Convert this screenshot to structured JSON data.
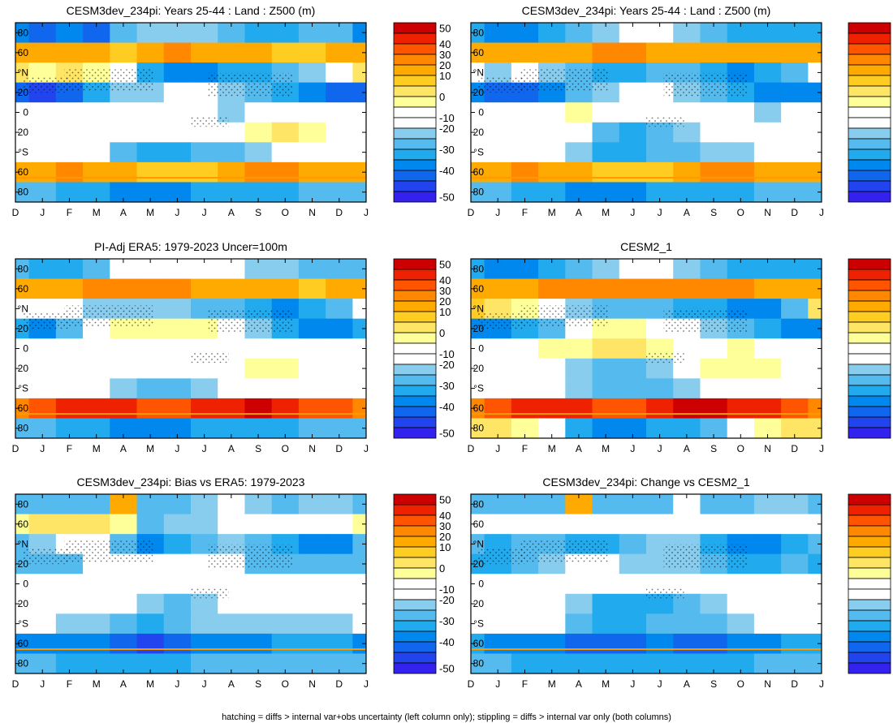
{
  "chart_data": {
    "type": "heatmap",
    "variable": "Z500 (m)",
    "months": [
      "D",
      "J",
      "F",
      "M",
      "A",
      "M",
      "J",
      "J",
      "A",
      "S",
      "O",
      "N",
      "D",
      "J"
    ],
    "lat_labels": [
      "80",
      "60",
      "°N",
      "20",
      "0",
      "20",
      "°S",
      "60",
      "80"
    ],
    "colorbar": {
      "levels": [
        "50",
        "40",
        "30",
        "20",
        "10",
        "0",
        "-10",
        "-20",
        "-30",
        "-40",
        "-50"
      ],
      "colors": [
        "#cc0000",
        "#ee2200",
        "#ff5500",
        "#ff8800",
        "#ffaa00",
        "#ffcc22",
        "#ffe566",
        "#ffff99",
        "#ffffff",
        "#ffffff",
        "#88ccee",
        "#55bbee",
        "#22aaee",
        "#0088ee",
        "#1166ee",
        "#2244ee",
        "#3322ee"
      ]
    },
    "footer": "hatching = diffs > internal var+obs uncertainty (left column only); stippling = diffs > internal var only (both columns)",
    "panels": [
      {
        "title": "CESM3dev_234pi: Years 25-44 : Land : Z500 (m)",
        "rows": [
          [
            -20,
            -25,
            -20,
            -25,
            -10,
            -5,
            -5,
            -5,
            -10,
            -15,
            -15,
            -10,
            -10,
            -20
          ],
          [
            20,
            25,
            25,
            20,
            15,
            25,
            30,
            25,
            25,
            20,
            15,
            15,
            20,
            20
          ],
          [
            10,
            5,
            10,
            5,
            0,
            -15,
            -20,
            -20,
            -15,
            -15,
            -10,
            -5,
            0,
            10
          ],
          [
            -25,
            -30,
            -25,
            -15,
            -5,
            -5,
            0,
            0,
            -5,
            -10,
            -15,
            -20,
            -25,
            -25
          ],
          [
            0,
            0,
            0,
            0,
            0,
            0,
            0,
            0,
            -5,
            0,
            0,
            0,
            0,
            0
          ],
          [
            0,
            0,
            0,
            0,
            0,
            0,
            0,
            0,
            0,
            5,
            10,
            5,
            0,
            0
          ],
          [
            0,
            0,
            0,
            0,
            -10,
            -15,
            -15,
            -10,
            -10,
            -5,
            0,
            0,
            0,
            0
          ],
          [
            20,
            25,
            30,
            25,
            20,
            15,
            15,
            15,
            20,
            30,
            35,
            25,
            20,
            20
          ],
          [
            -10,
            -10,
            -15,
            -15,
            -20,
            -20,
            -20,
            -15,
            -15,
            -15,
            -15,
            -10,
            -10,
            -10
          ]
        ]
      },
      {
        "title": "CESM3dev_234pi: Years 25-44 : Land : Z500 (m)",
        "rows": [
          [
            -15,
            -20,
            -20,
            -15,
            -10,
            -5,
            0,
            0,
            -5,
            -10,
            -15,
            -15,
            -15,
            -15
          ],
          [
            20,
            25,
            25,
            25,
            25,
            30,
            30,
            25,
            25,
            20,
            20,
            20,
            20,
            20
          ],
          [
            0,
            -5,
            0,
            -5,
            -10,
            -15,
            -15,
            -10,
            -10,
            -15,
            -20,
            -15,
            -10,
            0
          ],
          [
            -20,
            -25,
            -25,
            -20,
            -10,
            -5,
            0,
            0,
            -5,
            -10,
            -15,
            -20,
            -20,
            -20
          ],
          [
            0,
            0,
            0,
            0,
            5,
            0,
            0,
            0,
            0,
            0,
            0,
            -5,
            0,
            0
          ],
          [
            0,
            0,
            0,
            0,
            0,
            -10,
            -15,
            -10,
            -5,
            0,
            0,
            0,
            0,
            0
          ],
          [
            0,
            0,
            0,
            0,
            -5,
            -15,
            -15,
            -10,
            -10,
            -5,
            -5,
            0,
            0,
            0
          ],
          [
            20,
            25,
            30,
            25,
            20,
            15,
            15,
            15,
            20,
            30,
            35,
            25,
            20,
            20
          ],
          [
            -10,
            -10,
            -15,
            -15,
            -20,
            -20,
            -20,
            -15,
            -15,
            -15,
            -15,
            -10,
            -10,
            -10
          ]
        ]
      },
      {
        "title": "PI-Adj ERA5: 1979-2023 Uncer=100m",
        "rows": [
          [
            -10,
            -15,
            -15,
            -10,
            0,
            0,
            0,
            0,
            0,
            -5,
            -5,
            -10,
            -10,
            -10
          ],
          [
            20,
            25,
            25,
            30,
            30,
            35,
            30,
            25,
            20,
            20,
            20,
            15,
            20,
            20
          ],
          [
            0,
            0,
            0,
            -5,
            -5,
            -5,
            -5,
            -10,
            -10,
            -15,
            -20,
            -15,
            -10,
            0
          ],
          [
            -15,
            -20,
            -10,
            0,
            5,
            5,
            5,
            5,
            0,
            -5,
            -15,
            -20,
            -20,
            -15
          ],
          [
            0,
            0,
            0,
            0,
            0,
            0,
            0,
            0,
            0,
            0,
            0,
            0,
            0,
            0
          ],
          [
            0,
            0,
            0,
            0,
            0,
            0,
            0,
            0,
            0,
            5,
            5,
            0,
            0,
            0
          ],
          [
            0,
            0,
            0,
            0,
            -5,
            -10,
            -10,
            -5,
            0,
            0,
            0,
            0,
            0,
            0
          ],
          [
            35,
            40,
            45,
            45,
            45,
            40,
            40,
            45,
            45,
            50,
            45,
            40,
            40,
            35
          ],
          [
            -10,
            -10,
            -15,
            -15,
            -20,
            -20,
            -20,
            -15,
            -15,
            -15,
            -15,
            -10,
            -10,
            -10
          ]
        ]
      },
      {
        "title": "CESM2_1",
        "rows": [
          [
            -15,
            -20,
            -20,
            -15,
            -10,
            -5,
            0,
            0,
            -5,
            -10,
            -15,
            -15,
            -15,
            -15
          ],
          [
            20,
            25,
            25,
            30,
            30,
            35,
            35,
            30,
            30,
            30,
            30,
            25,
            25,
            20
          ],
          [
            15,
            10,
            5,
            0,
            -5,
            -10,
            -10,
            -10,
            -15,
            -15,
            -20,
            -20,
            -10,
            10
          ],
          [
            -20,
            -20,
            -15,
            -10,
            0,
            5,
            5,
            0,
            0,
            -5,
            -10,
            -15,
            -20,
            -20
          ],
          [
            0,
            0,
            0,
            5,
            5,
            10,
            10,
            5,
            0,
            0,
            5,
            0,
            0,
            0
          ],
          [
            0,
            0,
            0,
            0,
            -5,
            -10,
            -10,
            -5,
            0,
            5,
            5,
            5,
            0,
            0
          ],
          [
            0,
            0,
            0,
            0,
            -5,
            -10,
            -10,
            -10,
            -5,
            0,
            0,
            0,
            0,
            0
          ],
          [
            35,
            40,
            45,
            45,
            45,
            40,
            40,
            45,
            50,
            50,
            45,
            45,
            40,
            35
          ],
          [
            10,
            10,
            5,
            0,
            -15,
            -20,
            -20,
            -15,
            -15,
            -10,
            0,
            5,
            10,
            10
          ]
        ]
      },
      {
        "title": "CESM3dev_234pi: Bias vs ERA5: 1979-2023",
        "rows": [
          [
            -10,
            -10,
            -10,
            -10,
            20,
            -10,
            -10,
            -5,
            0,
            -5,
            -10,
            -5,
            -5,
            -10
          ],
          [
            5,
            10,
            10,
            10,
            5,
            -10,
            -5,
            -5,
            0,
            0,
            0,
            0,
            0,
            5
          ],
          [
            -10,
            -5,
            0,
            0,
            -10,
            -20,
            -15,
            -10,
            -5,
            -10,
            -15,
            -20,
            -20,
            -10
          ],
          [
            -10,
            -10,
            -10,
            0,
            0,
            0,
            0,
            0,
            0,
            -10,
            -10,
            -10,
            -10,
            -10
          ],
          [
            0,
            0,
            0,
            0,
            0,
            0,
            0,
            0,
            0,
            0,
            0,
            0,
            0,
            0
          ],
          [
            0,
            0,
            0,
            0,
            0,
            -5,
            -10,
            -5,
            0,
            0,
            0,
            0,
            0,
            0
          ],
          [
            0,
            0,
            -5,
            -5,
            -10,
            -15,
            -10,
            -5,
            -5,
            -5,
            -5,
            -5,
            -5,
            0
          ],
          [
            -20,
            -20,
            -20,
            -20,
            -25,
            -30,
            -25,
            -20,
            -20,
            -20,
            -15,
            -15,
            -15,
            -20
          ],
          [
            -10,
            -10,
            -15,
            -15,
            -15,
            -15,
            -15,
            -10,
            -10,
            -10,
            -10,
            -10,
            -10,
            -10
          ]
        ]
      },
      {
        "title": "CESM3dev_234pi: Change vs CESM2_1",
        "rows": [
          [
            -10,
            -10,
            -10,
            -10,
            20,
            -10,
            -10,
            -10,
            0,
            -10,
            -10,
            -5,
            -5,
            -10
          ],
          [
            0,
            0,
            0,
            0,
            0,
            0,
            0,
            0,
            0,
            0,
            0,
            0,
            0,
            0
          ],
          [
            -10,
            -15,
            -10,
            -10,
            -15,
            -15,
            -10,
            -5,
            -5,
            -15,
            -20,
            -20,
            -15,
            -10
          ],
          [
            -15,
            -15,
            -10,
            -5,
            0,
            0,
            -5,
            -5,
            -5,
            -10,
            -15,
            -15,
            -10,
            -15
          ],
          [
            0,
            0,
            0,
            0,
            0,
            0,
            0,
            0,
            0,
            0,
            0,
            0,
            0,
            0
          ],
          [
            0,
            0,
            0,
            0,
            -5,
            -15,
            -15,
            -15,
            -10,
            -5,
            0,
            0,
            0,
            0
          ],
          [
            0,
            0,
            0,
            0,
            -10,
            -15,
            -15,
            -10,
            -10,
            -10,
            -5,
            0,
            0,
            0
          ],
          [
            -15,
            -20,
            -20,
            -20,
            -25,
            -25,
            -25,
            -20,
            -25,
            -25,
            -20,
            -20,
            -15,
            -15
          ],
          [
            -10,
            -10,
            -15,
            -15,
            -15,
            -15,
            -15,
            -15,
            -15,
            -15,
            -15,
            -10,
            -10,
            -10
          ]
        ]
      }
    ]
  }
}
